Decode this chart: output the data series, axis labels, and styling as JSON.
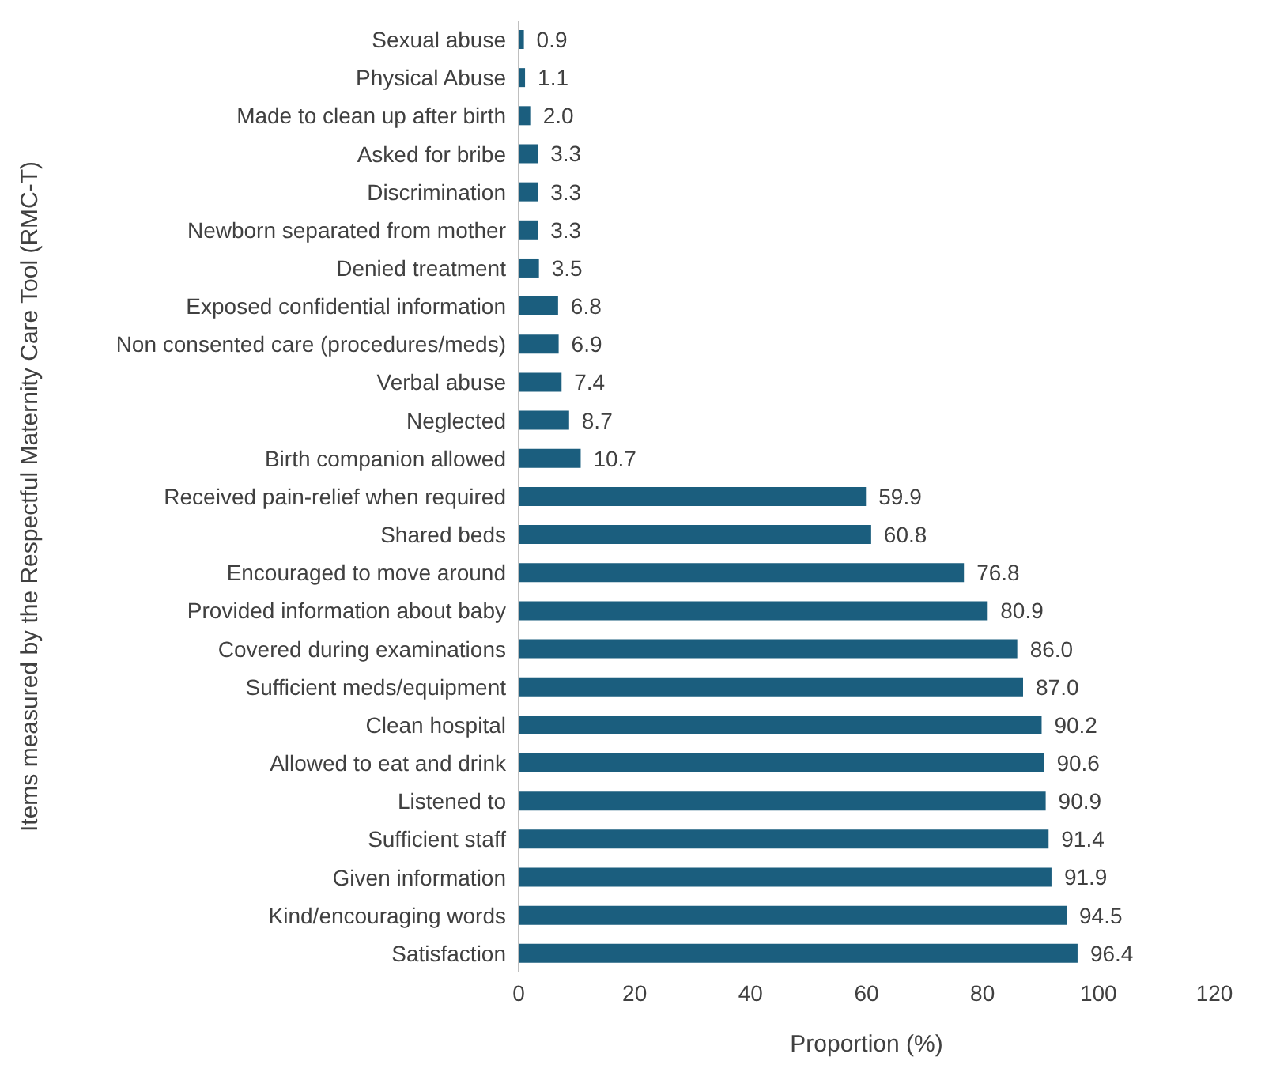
{
  "chart_data": {
    "type": "bar",
    "orientation": "horizontal",
    "xlabel": "Proportion (%)",
    "ylabel": "Items measured by the Respectful Maternity Care Tool (RMC-T)",
    "categories": [
      "Sexual abuse",
      "Physical Abuse",
      "Made to clean up after birth",
      "Asked for bribe",
      "Discrimination",
      "Newborn separated from mother",
      "Denied treatment",
      "Exposed confidential information",
      "Non consented care (procedures/meds)",
      "Verbal abuse",
      "Neglected",
      "Birth companion allowed",
      "Received pain-relief when required",
      "Shared beds",
      "Encouraged to move around",
      "Provided information about baby",
      "Covered during examinations",
      "Sufficient meds/equipment",
      "Clean hospital",
      "Allowed to eat and drink",
      "Listened to",
      "Sufficient staff",
      "Given information",
      "Kind/encouraging words",
      "Satisfaction"
    ],
    "values": [
      0.9,
      1.1,
      2.0,
      3.3,
      3.3,
      3.3,
      3.5,
      6.8,
      6.9,
      7.4,
      8.7,
      10.7,
      59.9,
      60.8,
      76.8,
      80.9,
      86.0,
      87.0,
      90.2,
      90.6,
      90.9,
      91.4,
      91.9,
      94.5,
      96.4
    ],
    "value_labels": [
      "0.9",
      "1.1",
      "2.0",
      "3.3",
      "3.3",
      "3.3",
      "3.5",
      "6.8",
      "6.9",
      "7.4",
      "8.7",
      "10.7",
      "59.9",
      "60.8",
      "76.8",
      "80.9",
      "86.0",
      "87.0",
      "90.2",
      "90.6",
      "90.9",
      "91.4",
      "91.9",
      "94.5",
      "96.4"
    ],
    "color": "#1b5e7e",
    "xlim": [
      0,
      120
    ],
    "xticks": [
      0,
      20,
      40,
      60,
      80,
      100,
      120
    ],
    "grid": false,
    "legend": false
  }
}
